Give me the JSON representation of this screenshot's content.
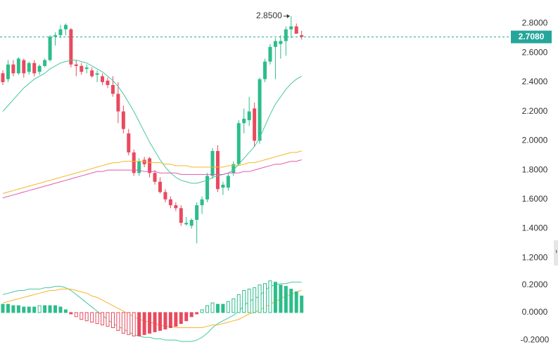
{
  "chart_data": {
    "type": "candlestick",
    "up_color": "#2dbd8a",
    "down_color": "#e84a5f",
    "open": [
      2.46,
      2.42,
      2.52,
      2.46,
      2.55,
      2.47,
      2.53,
      2.47,
      2.51,
      2.55,
      2.71,
      2.72,
      2.76,
      2.76,
      2.52,
      2.51,
      2.49,
      2.48,
      2.45,
      2.44,
      2.41,
      2.38,
      2.32,
      2.2,
      2.05,
      1.92,
      1.78,
      1.87,
      1.88,
      1.78,
      1.72,
      1.65,
      1.6,
      1.56,
      1.54,
      1.43,
      1.42,
      1.46,
      1.56,
      1.6,
      1.76,
      1.93,
      1.68,
      1.68,
      1.78,
      1.84,
      2.12,
      2.14,
      2.22,
      2.0,
      2.42,
      2.54,
      2.64,
      2.66,
      2.68,
      2.76,
      2.78,
      2.72
    ],
    "high": [
      2.48,
      2.55,
      2.55,
      2.57,
      2.56,
      2.54,
      2.55,
      2.52,
      2.56,
      2.72,
      2.74,
      2.79,
      2.8,
      2.77,
      2.55,
      2.53,
      2.52,
      2.5,
      2.48,
      2.46,
      2.43,
      2.44,
      2.4,
      2.24,
      2.08,
      1.94,
      1.88,
      1.89,
      1.89,
      1.8,
      1.75,
      1.67,
      1.62,
      1.58,
      1.56,
      1.48,
      1.47,
      1.58,
      1.62,
      1.78,
      1.95,
      1.97,
      1.72,
      1.78,
      1.86,
      2.14,
      2.22,
      2.3,
      2.26,
      2.43,
      2.56,
      2.66,
      2.7,
      2.72,
      2.78,
      2.85,
      2.8,
      2.75
    ],
    "low": [
      2.38,
      2.4,
      2.44,
      2.45,
      2.43,
      2.45,
      2.44,
      2.45,
      2.5,
      2.54,
      2.65,
      2.7,
      2.72,
      2.5,
      2.44,
      2.45,
      2.46,
      2.43,
      2.4,
      2.38,
      2.36,
      2.3,
      2.12,
      2.05,
      1.9,
      1.76,
      1.76,
      1.82,
      1.75,
      1.7,
      1.64,
      1.58,
      1.54,
      1.52,
      1.42,
      1.42,
      1.4,
      1.3,
      1.5,
      1.58,
      1.74,
      1.65,
      1.63,
      1.66,
      1.76,
      1.83,
      2.05,
      2.1,
      1.96,
      1.98,
      2.4,
      2.52,
      2.42,
      2.56,
      2.58,
      2.7,
      2.73,
      2.69
    ],
    "close": [
      2.4,
      2.52,
      2.46,
      2.56,
      2.46,
      2.53,
      2.46,
      2.51,
      2.55,
      2.71,
      2.72,
      2.76,
      2.79,
      2.52,
      2.51,
      2.47,
      2.5,
      2.44,
      2.46,
      2.4,
      2.38,
      2.32,
      2.2,
      2.08,
      1.92,
      1.78,
      1.86,
      1.84,
      1.78,
      1.72,
      1.65,
      1.6,
      1.56,
      1.54,
      1.44,
      1.44,
      1.46,
      1.56,
      1.6,
      1.76,
      1.93,
      1.67,
      1.7,
      1.76,
      1.84,
      2.12,
      2.15,
      2.2,
      2.0,
      2.42,
      2.54,
      2.64,
      2.68,
      2.68,
      2.76,
      2.78,
      2.73,
      2.708
    ],
    "series": [
      {
        "color": "#46c7a0",
        "values": [
          2.2,
          2.24,
          2.28,
          2.32,
          2.36,
          2.39,
          2.42,
          2.44,
          2.46,
          2.49,
          2.51,
          2.53,
          2.54,
          2.55,
          2.55,
          2.54,
          2.53,
          2.51,
          2.49,
          2.47,
          2.44,
          2.41,
          2.37,
          2.32,
          2.26,
          2.2,
          2.13,
          2.06,
          1.99,
          1.93,
          1.87,
          1.82,
          1.78,
          1.75,
          1.73,
          1.72,
          1.71,
          1.71,
          1.72,
          1.73,
          1.75,
          1.76,
          1.77,
          1.78,
          1.8,
          1.84,
          1.88,
          1.92,
          1.96,
          2.02,
          2.1,
          2.18,
          2.25,
          2.3,
          2.35,
          2.39,
          2.42,
          2.44
        ]
      },
      {
        "color": "#f5b52a",
        "values": [
          1.64,
          1.65,
          1.66,
          1.67,
          1.68,
          1.69,
          1.7,
          1.71,
          1.72,
          1.73,
          1.74,
          1.75,
          1.76,
          1.77,
          1.78,
          1.79,
          1.8,
          1.81,
          1.82,
          1.83,
          1.84,
          1.85,
          1.85,
          1.86,
          1.86,
          1.86,
          1.86,
          1.86,
          1.85,
          1.85,
          1.85,
          1.84,
          1.84,
          1.83,
          1.83,
          1.83,
          1.82,
          1.82,
          1.82,
          1.82,
          1.82,
          1.82,
          1.82,
          1.83,
          1.83,
          1.83,
          1.84,
          1.85,
          1.85,
          1.86,
          1.87,
          1.88,
          1.89,
          1.9,
          1.91,
          1.92,
          1.92,
          1.93
        ]
      },
      {
        "color": "#e05ab0",
        "values": [
          1.61,
          1.62,
          1.63,
          1.64,
          1.65,
          1.66,
          1.67,
          1.68,
          1.69,
          1.7,
          1.71,
          1.72,
          1.73,
          1.74,
          1.75,
          1.76,
          1.77,
          1.78,
          1.79,
          1.79,
          1.8,
          1.8,
          1.8,
          1.8,
          1.8,
          1.8,
          1.8,
          1.79,
          1.79,
          1.79,
          1.78,
          1.78,
          1.78,
          1.78,
          1.77,
          1.77,
          1.77,
          1.77,
          1.77,
          1.77,
          1.77,
          1.77,
          1.77,
          1.78,
          1.78,
          1.78,
          1.79,
          1.79,
          1.8,
          1.81,
          1.82,
          1.83,
          1.84,
          1.84,
          1.85,
          1.86,
          1.86,
          1.87
        ]
      },
      {
        "color": "#46c7a0",
        "axis": "y2",
        "values": [
          0.13,
          0.14,
          0.15,
          0.16,
          0.16,
          0.17,
          0.17,
          0.17,
          0.18,
          0.18,
          0.19,
          0.19,
          0.18,
          0.16,
          0.13,
          0.1,
          0.07,
          0.04,
          0.01,
          -0.02,
          -0.05,
          -0.08,
          -0.1,
          -0.12,
          -0.14,
          -0.16,
          -0.17,
          -0.18,
          -0.18,
          -0.19,
          -0.19,
          -0.2,
          -0.2,
          -0.2,
          -0.21,
          -0.21,
          -0.21,
          -0.2,
          -0.18,
          -0.15,
          -0.11,
          -0.08,
          -0.06,
          -0.04,
          -0.02,
          0.01,
          0.05,
          0.08,
          0.1,
          0.12,
          0.16,
          0.19,
          0.2,
          0.21,
          0.21,
          0.22,
          0.22,
          0.22
        ]
      },
      {
        "color": "#f5b52a",
        "axis": "y2",
        "values": [
          0.07,
          0.08,
          0.09,
          0.1,
          0.11,
          0.12,
          0.13,
          0.14,
          0.15,
          0.16,
          0.16,
          0.17,
          0.17,
          0.17,
          0.16,
          0.15,
          0.14,
          0.12,
          0.11,
          0.09,
          0.07,
          0.05,
          0.03,
          0.01,
          -0.01,
          -0.03,
          -0.05,
          -0.06,
          -0.07,
          -0.08,
          -0.09,
          -0.1,
          -0.1,
          -0.11,
          -0.11,
          -0.11,
          -0.11,
          -0.11,
          -0.11,
          -0.1,
          -0.09,
          -0.09,
          -0.08,
          -0.07,
          -0.06,
          -0.05,
          -0.03,
          -0.01,
          0.0,
          0.02,
          0.04,
          0.06,
          0.08,
          0.1,
          0.12,
          0.13,
          0.15,
          0.16
        ]
      }
    ],
    "histogram": {
      "axis": "y2",
      "values": [
        0.06,
        0.06,
        0.05,
        0.05,
        0.04,
        0.04,
        0.04,
        0.05,
        0.05,
        0.05,
        0.05,
        0.04,
        0.02,
        -0.01,
        -0.03,
        -0.05,
        -0.06,
        -0.07,
        -0.08,
        -0.09,
        -0.1,
        -0.11,
        -0.13,
        -0.15,
        -0.16,
        -0.17,
        -0.17,
        -0.16,
        -0.15,
        -0.14,
        -0.13,
        -0.12,
        -0.11,
        -0.1,
        -0.08,
        -0.06,
        -0.03,
        -0.01,
        0.02,
        0.05,
        0.07,
        0.06,
        0.06,
        0.08,
        0.1,
        0.13,
        0.16,
        0.17,
        0.18,
        0.2,
        0.21,
        0.23,
        0.22,
        0.2,
        0.19,
        0.17,
        0.15,
        0.12
      ]
    },
    "ylim": [
      1.12,
      2.96
    ],
    "yticks": [
      {
        "value": 1.2,
        "label": "1.2000"
      },
      {
        "value": 1.4,
        "label": "1.4000"
      },
      {
        "value": 1.6,
        "label": "1.6000"
      },
      {
        "value": 1.8,
        "label": "1.8000"
      },
      {
        "value": 2.0,
        "label": "2.0000"
      },
      {
        "value": 2.2,
        "label": "2.2000"
      },
      {
        "value": 2.4,
        "label": "2.4000"
      },
      {
        "value": 2.6,
        "label": "2.6000"
      },
      {
        "value": 2.8,
        "label": "2.8000"
      }
    ],
    "y2lim": [
      -0.25,
      0.29
    ],
    "y2ticks": [
      {
        "value": -0.2,
        "label": "-0.2000"
      },
      {
        "value": 0,
        "label": "0.0000"
      },
      {
        "value": 0.2,
        "label": "0.2000"
      }
    ],
    "last_price": {
      "value": 2.708,
      "label": "2.7080",
      "color": "#26a69a"
    },
    "high_marker": {
      "value": 2.85,
      "label": "2.8500"
    }
  }
}
